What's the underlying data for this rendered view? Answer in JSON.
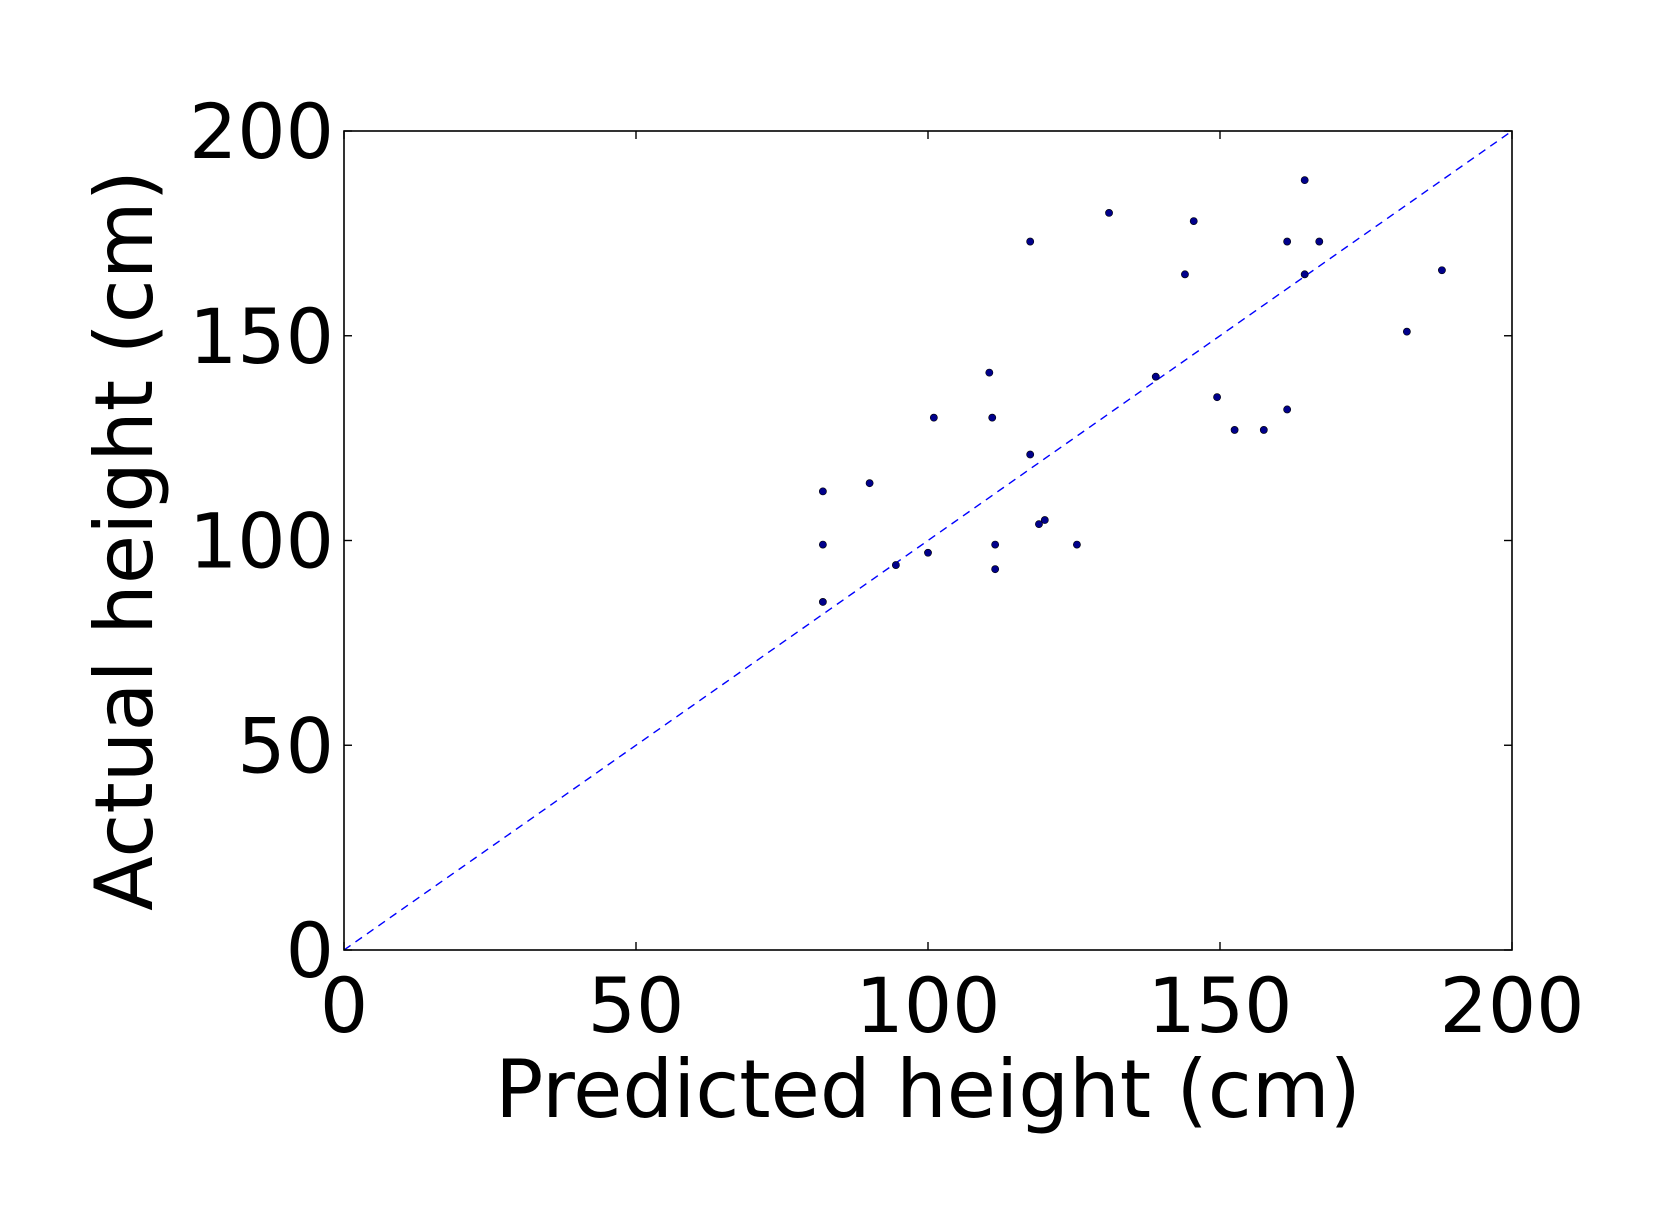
{
  "chart_data": {
    "type": "scatter",
    "title": "",
    "xlabel": "Predicted height (cm)",
    "ylabel": "Actual height (cm)",
    "xlim": [
      0,
      200
    ],
    "ylim": [
      0,
      200
    ],
    "xticks": [
      "0",
      "50",
      "100",
      "150",
      "200"
    ],
    "yticks": [
      "0",
      "50",
      "100",
      "150",
      "200"
    ],
    "grid": false,
    "colors": {
      "points": "#00008b",
      "reference_line": "#0000ff",
      "frame": "#000000"
    },
    "reference_line": {
      "style": "dashed",
      "from": [
        0,
        0
      ],
      "to": [
        200,
        200
      ]
    },
    "series": [
      {
        "points": [
          [
            82,
            112
          ],
          [
            82,
            99
          ],
          [
            82,
            85
          ],
          [
            90,
            114
          ],
          [
            94.5,
            94
          ],
          [
            100,
            97
          ],
          [
            101,
            130
          ],
          [
            110.5,
            141
          ],
          [
            111,
            130
          ],
          [
            111.5,
            99
          ],
          [
            111.5,
            93
          ],
          [
            117.5,
            173
          ],
          [
            117.5,
            121
          ],
          [
            119,
            104
          ],
          [
            120,
            105
          ],
          [
            125.5,
            99
          ],
          [
            131,
            180
          ],
          [
            139,
            140
          ],
          [
            144,
            165
          ],
          [
            145.5,
            178
          ],
          [
            149.5,
            135
          ],
          [
            152.5,
            127
          ],
          [
            157.5,
            127
          ],
          [
            161.5,
            173
          ],
          [
            161.5,
            132
          ],
          [
            164.5,
            188
          ],
          [
            164.5,
            165
          ],
          [
            167,
            173
          ],
          [
            182,
            151
          ],
          [
            188,
            166
          ]
        ]
      }
    ]
  }
}
